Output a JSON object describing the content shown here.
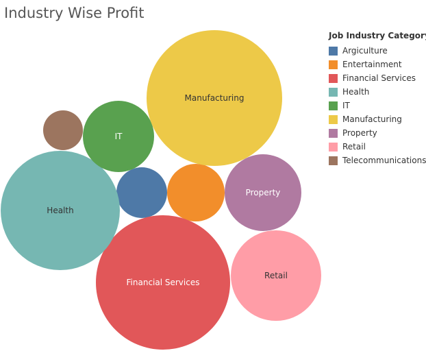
{
  "chart_data": {
    "type": "bubble",
    "title": "Industry Wise Profit",
    "legend_title": "Job Industry Category",
    "legend_position": "right",
    "series": [
      {
        "name": "Argiculture",
        "color": "#4e79a7",
        "label": "",
        "text_color": "#ffffff"
      },
      {
        "name": "Entertainment",
        "color": "#f28e2b",
        "label": "",
        "text_color": "#ffffff"
      },
      {
        "name": "Financial Services",
        "color": "#e15759",
        "label": "Financial Services",
        "text_color": "#ffffff"
      },
      {
        "name": "Health",
        "color": "#76b7b2",
        "label": "Health",
        "text_color": "#333333"
      },
      {
        "name": "IT",
        "color": "#59a14f",
        "label": "IT",
        "text_color": "#ffffff"
      },
      {
        "name": "Manufacturing",
        "color": "#edc948",
        "label": "Manufacturing",
        "text_color": "#333333"
      },
      {
        "name": "Property",
        "color": "#b07aa1",
        "label": "Property",
        "text_color": "#ffffff"
      },
      {
        "name": "Retail",
        "color": "#ff9da7",
        "label": "Retail",
        "text_color": "#333333"
      },
      {
        "name": "Telecommunications",
        "color": "#9c755f",
        "label": "",
        "text_color": "#ffffff"
      }
    ]
  }
}
